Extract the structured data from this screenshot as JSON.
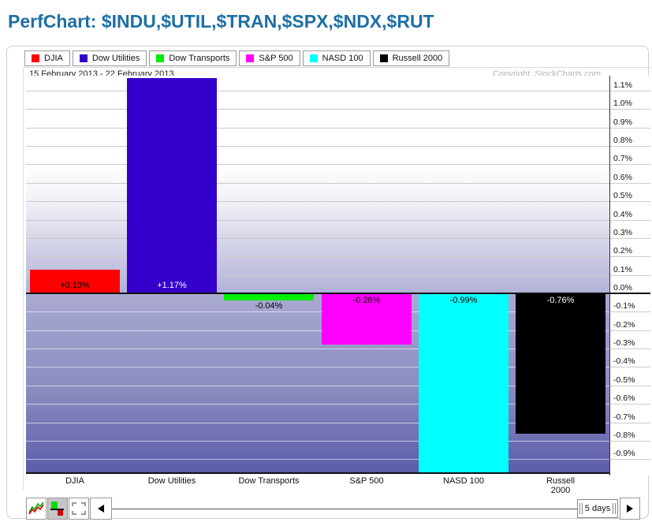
{
  "title": "PerfChart: $INDU,$UTIL,$TRAN,$SPX,$NDX,$RUT",
  "chart_header": {
    "date_range": "15 February 2013 - 22 February 2013",
    "copyright": "Copyright, StockCharts.com"
  },
  "legend": {
    "items": [
      {
        "label": "DJIA",
        "color": "#ff0000"
      },
      {
        "label": "Dow Utilities",
        "color": "#3300cc"
      },
      {
        "label": "Dow Transports",
        "color": "#00ee00"
      },
      {
        "label": "S&P 500",
        "color": "#ff00ff"
      },
      {
        "label": "NASD 100",
        "color": "#00ffff"
      },
      {
        "label": "Russell 2000",
        "color": "#000000"
      }
    ]
  },
  "chart_data": {
    "type": "bar",
    "title": "",
    "categories": [
      "DJIA",
      "Dow Utilities",
      "Dow Transports",
      "S&P 500",
      "NASD 100",
      "Russell 2000"
    ],
    "values": [
      0.13,
      1.17,
      -0.04,
      -0.28,
      -0.99,
      -0.76
    ],
    "value_labels": [
      "+0.13%",
      "+1.17%",
      "-0.04%",
      "-0.28%",
      "-0.99%",
      "-0.76%"
    ],
    "bar_colors": [
      "#ff0000",
      "#3300cc",
      "#00ee00",
      "#ff00ff",
      "#00ffff",
      "#000000"
    ],
    "value_label_colors": [
      "#000000",
      "#ffffff",
      "#000000",
      "#000000",
      "#000000",
      "#ffffff"
    ],
    "xlabel": "",
    "ylabel": "",
    "ylim": [
      -0.98,
      1.18
    ],
    "ytick_step": 0.1,
    "yticks": [
      "1.1%",
      "1.0%",
      "0.9%",
      "0.8%",
      "0.7%",
      "0.6%",
      "0.5%",
      "0.4%",
      "0.3%",
      "0.2%",
      "0.1%",
      "0.0%",
      "-0.1%",
      "-0.2%",
      "-0.3%",
      "-0.4%",
      "-0.5%",
      "-0.6%",
      "-0.7%",
      "-0.8%",
      "-0.9%"
    ],
    "grid": true,
    "legend_position": "top",
    "zero_line": true,
    "unit": "percent"
  },
  "toolbar": {
    "period_label": "5 days"
  },
  "colors": {
    "title_text": "#1d6fa5",
    "positive_region_bottom": "#b2b2d8",
    "negative_region_bottom": "#5b5baa",
    "zero_line": "#111111"
  }
}
